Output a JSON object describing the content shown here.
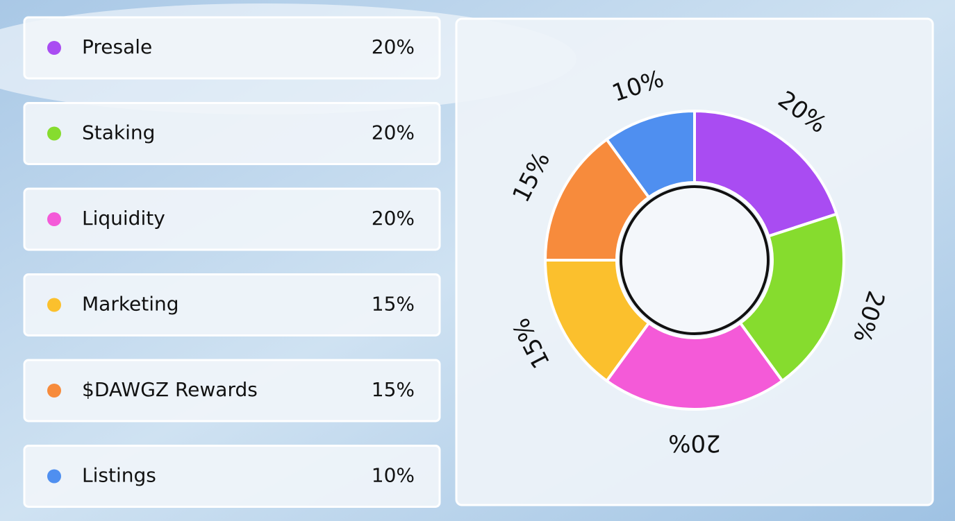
{
  "chart_data": {
    "type": "donut",
    "categories": [
      "Presale",
      "Staking",
      "Liquidity",
      "Marketing",
      "$DAWGZ Rewards",
      "Listings"
    ],
    "values": [
      20,
      20,
      20,
      15,
      15,
      10
    ],
    "value_labels": [
      "20%",
      "20%",
      "20%",
      "15%",
      "15%",
      "10%"
    ],
    "colors": [
      "#a94cf2",
      "#86dc2e",
      "#f45ad8",
      "#fbc02d",
      "#f78b3c",
      "#4f8ff0"
    ]
  }
}
